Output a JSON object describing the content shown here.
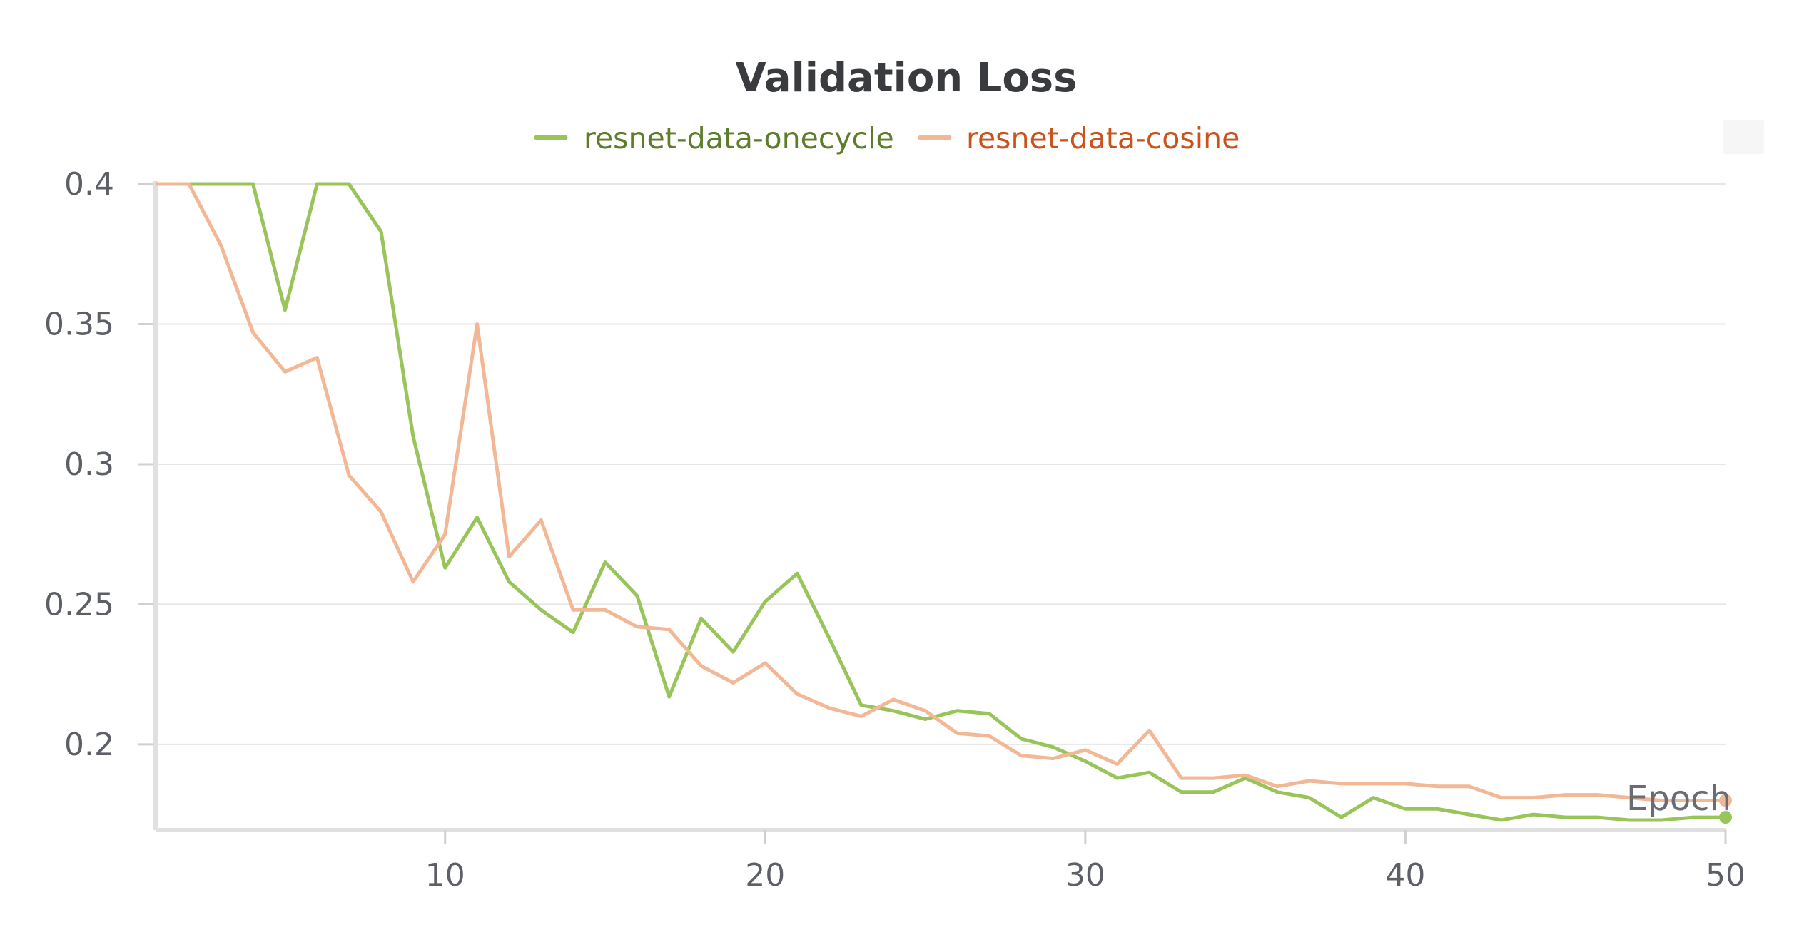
{
  "chart_data": {
    "type": "line",
    "title": "Validation Loss",
    "xlabel": "Epoch",
    "ylabel": "",
    "xlim": [
      1,
      50
    ],
    "ylim": [
      0.173,
      0.4
    ],
    "xticks": [
      10,
      20,
      30,
      40,
      50
    ],
    "yticks": [
      0.4,
      0.35,
      0.3,
      0.25,
      0.2
    ],
    "ytick_labels": [
      "0.4",
      "0.35",
      "0.3",
      "0.25",
      "0.2"
    ],
    "xtick_labels": [
      "10",
      "20",
      "30",
      "40",
      "50"
    ],
    "grid": true,
    "legend_position": "top-center",
    "series": [
      {
        "name": "resnet-data-onecycle",
        "color": "#98c45a",
        "label_color": "#5e7d2a",
        "x": [
          1,
          2,
          3,
          4,
          5,
          6,
          7,
          8,
          9,
          10,
          11,
          12,
          13,
          14,
          15,
          16,
          17,
          18,
          19,
          20,
          21,
          22,
          23,
          24,
          25,
          26,
          27,
          28,
          29,
          30,
          31,
          32,
          33,
          34,
          35,
          36,
          37,
          38,
          39,
          40,
          41,
          42,
          43,
          44,
          45,
          46,
          47,
          48,
          49,
          50
        ],
        "values": [
          0.4,
          0.4,
          0.4,
          0.4,
          0.355,
          0.4,
          0.4,
          0.383,
          0.31,
          0.263,
          0.281,
          0.258,
          0.248,
          0.24,
          0.265,
          0.253,
          0.217,
          0.245,
          0.233,
          0.251,
          0.261,
          0.238,
          0.214,
          0.212,
          0.209,
          0.212,
          0.211,
          0.202,
          0.199,
          0.194,
          0.188,
          0.19,
          0.183,
          0.183,
          0.188,
          0.183,
          0.181,
          0.174,
          0.181,
          0.177,
          0.177,
          0.175,
          0.173,
          0.175,
          0.174,
          0.174,
          0.173,
          0.173,
          0.174,
          0.174
        ]
      },
      {
        "name": "resnet-data-cosine",
        "color": "#f2b896",
        "label_color": "#c9531a",
        "x": [
          1,
          2,
          3,
          4,
          5,
          6,
          7,
          8,
          9,
          10,
          11,
          12,
          13,
          14,
          15,
          16,
          17,
          18,
          19,
          20,
          21,
          22,
          23,
          24,
          25,
          26,
          27,
          28,
          29,
          30,
          31,
          32,
          33,
          34,
          35,
          36,
          37,
          38,
          39,
          40,
          41,
          42,
          43,
          44,
          45,
          46,
          47,
          48,
          49,
          50
        ],
        "values": [
          0.4,
          0.4,
          0.378,
          0.347,
          0.333,
          0.338,
          0.296,
          0.283,
          0.258,
          0.275,
          0.35,
          0.267,
          0.28,
          0.248,
          0.248,
          0.242,
          0.241,
          0.228,
          0.222,
          0.229,
          0.218,
          0.213,
          0.21,
          0.216,
          0.212,
          0.204,
          0.203,
          0.196,
          0.195,
          0.198,
          0.193,
          0.205,
          0.188,
          0.188,
          0.189,
          0.185,
          0.187,
          0.186,
          0.186,
          0.186,
          0.185,
          0.185,
          0.181,
          0.181,
          0.182,
          0.182,
          0.181,
          0.18,
          0.18,
          0.18
        ]
      }
    ]
  }
}
